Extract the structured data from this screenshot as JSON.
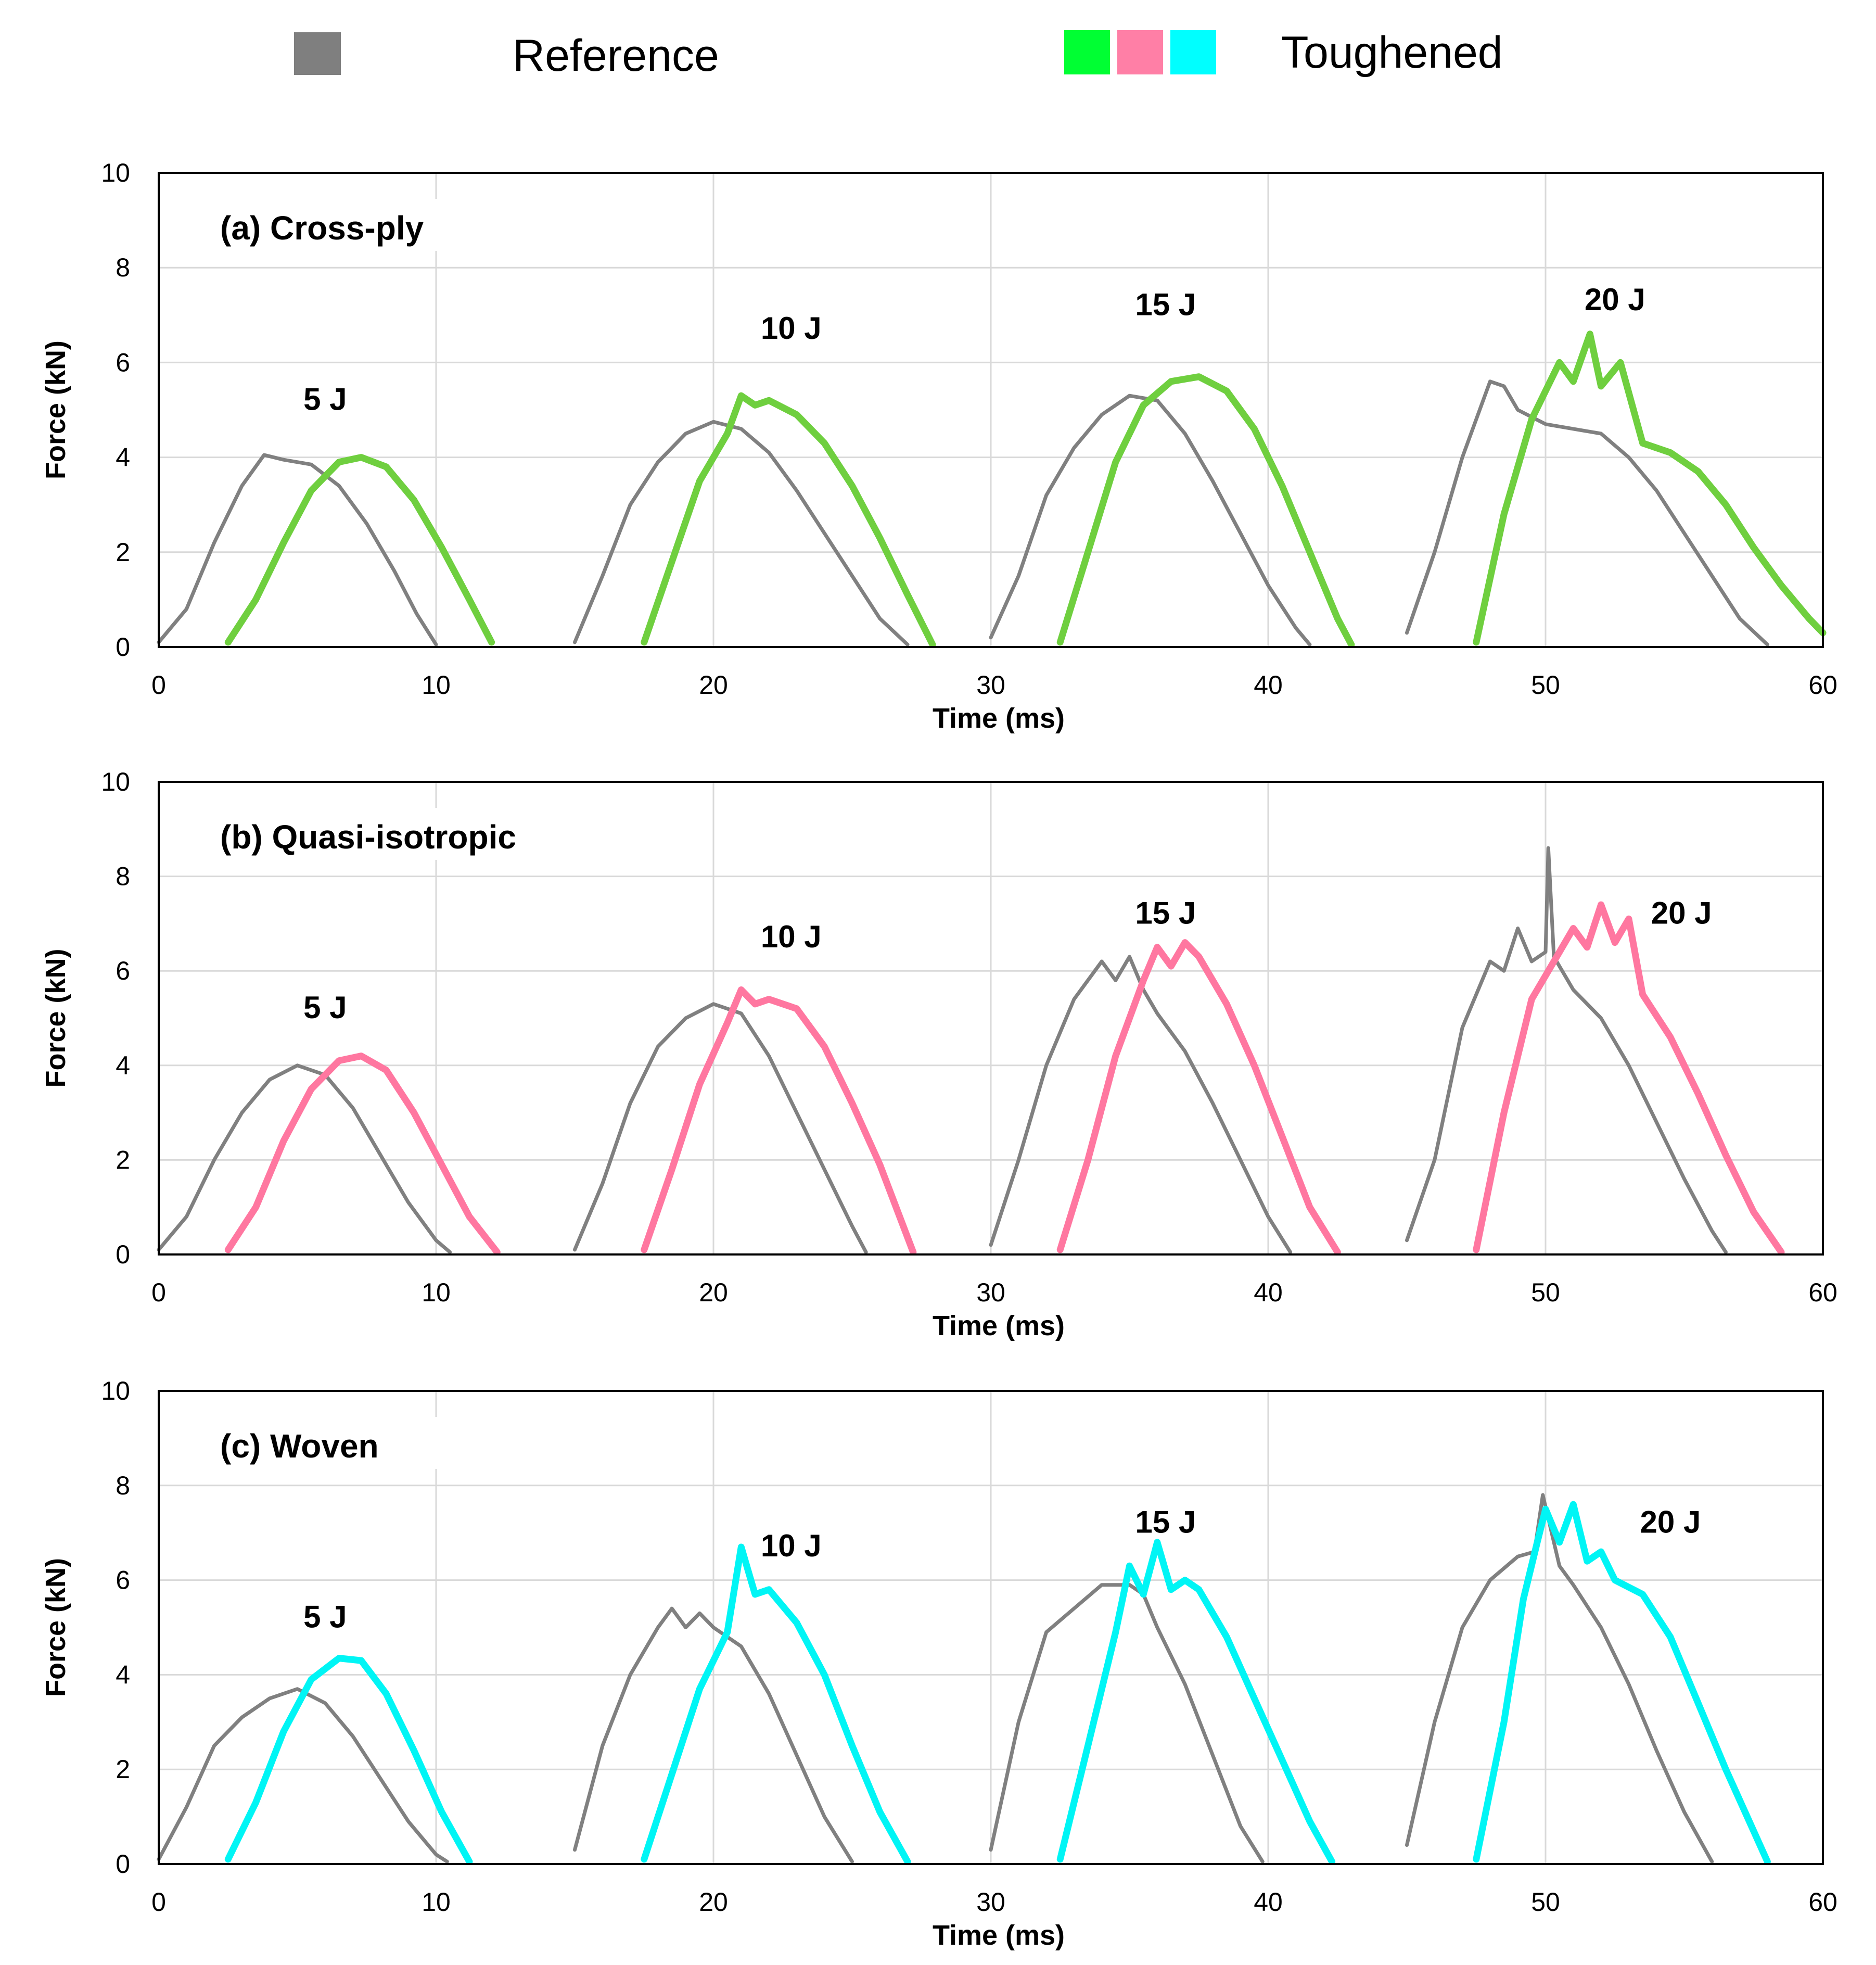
{
  "legend": {
    "reference_label": "Reference",
    "toughened_label": "Toughened",
    "reference_color": "#7f7f7f",
    "toughened_colors": [
      "#00ff33",
      "#ff7fa6",
      "#00ffff"
    ]
  },
  "chart_data": [
    {
      "type": "line",
      "title": "(a) Cross-ply",
      "xlabel": "Time (ms)",
      "ylabel": "Force (kN)",
      "xlim": [
        0,
        60
      ],
      "ylim": [
        0,
        10
      ],
      "xticks": [
        "0",
        "10",
        "20",
        "30",
        "40",
        "50",
        "60"
      ],
      "yticks": [
        "0",
        "2",
        "4",
        "6",
        "8",
        "10"
      ],
      "grid": true,
      "toughened_color": "#6fcf3f",
      "reference_color": "#808080",
      "annotations": [
        {
          "text": "5 J",
          "x": 6,
          "y": 5.0
        },
        {
          "text": "10 J",
          "x": 22.8,
          "y": 6.5
        },
        {
          "text": "15 J",
          "x": 36.3,
          "y": 7.0
        },
        {
          "text": "20 J",
          "x": 52.5,
          "y": 7.1
        }
      ],
      "series": [
        {
          "name": "Reference 5 J",
          "group": "reference",
          "x": [
            0,
            1,
            2,
            3,
            3.8,
            4.5,
            5.5,
            6.5,
            7.5,
            8.5,
            9.3,
            10
          ],
          "y": [
            0.1,
            0.8,
            2.2,
            3.4,
            4.05,
            3.95,
            3.85,
            3.4,
            2.6,
            1.6,
            0.7,
            0.05
          ]
        },
        {
          "name": "Toughened 5 J",
          "group": "toughened",
          "x": [
            2.5,
            3.5,
            4.5,
            5.5,
            6.5,
            7.3,
            8.2,
            9.2,
            10.2,
            11.2,
            12
          ],
          "y": [
            0.1,
            1.0,
            2.2,
            3.3,
            3.9,
            4.0,
            3.8,
            3.1,
            2.1,
            1.0,
            0.1
          ]
        },
        {
          "name": "Reference 10 J",
          "group": "reference",
          "x": [
            15,
            16,
            17,
            18,
            19,
            20,
            21,
            22,
            23,
            24,
            25,
            26,
            27
          ],
          "y": [
            0.1,
            1.5,
            3.0,
            3.9,
            4.5,
            4.75,
            4.6,
            4.1,
            3.3,
            2.4,
            1.5,
            0.6,
            0.05
          ]
        },
        {
          "name": "Toughened 10 J",
          "group": "toughened",
          "x": [
            17.5,
            18.5,
            19.5,
            20.5,
            21,
            21.5,
            22,
            23,
            24,
            25,
            26,
            27,
            27.9
          ],
          "y": [
            0.1,
            1.8,
            3.5,
            4.5,
            5.3,
            5.1,
            5.2,
            4.9,
            4.3,
            3.4,
            2.3,
            1.1,
            0.05
          ]
        },
        {
          "name": "Reference 15 J",
          "group": "reference",
          "x": [
            30,
            31,
            32,
            33,
            34,
            35,
            36,
            37,
            38,
            39,
            40,
            41,
            41.5
          ],
          "y": [
            0.2,
            1.5,
            3.2,
            4.2,
            4.9,
            5.3,
            5.2,
            4.5,
            3.5,
            2.4,
            1.3,
            0.4,
            0.05
          ]
        },
        {
          "name": "Toughened 15 J",
          "group": "toughened",
          "x": [
            32.5,
            33.5,
            34.5,
            35.5,
            36.5,
            37.5,
            38.5,
            39.5,
            40.5,
            41.5,
            42.5,
            43
          ],
          "y": [
            0.1,
            2.0,
            3.9,
            5.1,
            5.6,
            5.7,
            5.4,
            4.6,
            3.4,
            2.0,
            0.6,
            0.05
          ]
        },
        {
          "name": "Reference 20 J",
          "group": "reference",
          "x": [
            45,
            46,
            47,
            48,
            48.5,
            49,
            50,
            51,
            52,
            53,
            54,
            55,
            56,
            57,
            58
          ],
          "y": [
            0.3,
            2.0,
            4.0,
            5.6,
            5.5,
            5.0,
            4.7,
            4.6,
            4.5,
            4.0,
            3.3,
            2.4,
            1.5,
            0.6,
            0.05
          ]
        },
        {
          "name": "Toughened 20 J",
          "group": "toughened",
          "x": [
            47.5,
            48.5,
            49.5,
            50.5,
            51,
            51.6,
            52,
            52.7,
            53.5,
            54.5,
            55.5,
            56.5,
            57.5,
            58.5,
            59.5,
            60
          ],
          "y": [
            0.1,
            2.8,
            4.8,
            6.0,
            5.6,
            6.6,
            5.5,
            6.0,
            4.3,
            4.1,
            3.7,
            3.0,
            2.1,
            1.3,
            0.6,
            0.3
          ]
        }
      ]
    },
    {
      "type": "line",
      "title": "(b) Quasi-isotropic",
      "xlabel": "Time (ms)",
      "ylabel": "Force (kN)",
      "xlim": [
        0,
        60
      ],
      "ylim": [
        0,
        10
      ],
      "xticks": [
        "0",
        "10",
        "20",
        "30",
        "40",
        "50",
        "60"
      ],
      "yticks": [
        "0",
        "2",
        "4",
        "6",
        "8",
        "10"
      ],
      "grid": true,
      "toughened_color": "#ff77a0",
      "reference_color": "#808080",
      "annotations": [
        {
          "text": "5 J",
          "x": 6,
          "y": 5.0
        },
        {
          "text": "10 J",
          "x": 22.8,
          "y": 6.5
        },
        {
          "text": "15 J",
          "x": 36.3,
          "y": 7.0
        },
        {
          "text": "20 J",
          "x": 54.9,
          "y": 7.0
        }
      ],
      "series": [
        {
          "name": "Reference 5 J",
          "group": "reference",
          "x": [
            0,
            1,
            2,
            3,
            4,
            5,
            6,
            7,
            8,
            9,
            10,
            10.5
          ],
          "y": [
            0.1,
            0.8,
            2.0,
            3.0,
            3.7,
            4.0,
            3.8,
            3.1,
            2.1,
            1.1,
            0.3,
            0.05
          ]
        },
        {
          "name": "Toughened 5 J",
          "group": "toughened",
          "x": [
            2.5,
            3.5,
            4.5,
            5.5,
            6.5,
            7.3,
            8.2,
            9.2,
            10.2,
            11.2,
            12.2
          ],
          "y": [
            0.1,
            1.0,
            2.4,
            3.5,
            4.1,
            4.2,
            3.9,
            3.0,
            1.9,
            0.8,
            0.05
          ]
        },
        {
          "name": "Reference 10 J",
          "group": "reference",
          "x": [
            15,
            16,
            17,
            18,
            19,
            20,
            21,
            22,
            23,
            24,
            25,
            25.5
          ],
          "y": [
            0.1,
            1.5,
            3.2,
            4.4,
            5.0,
            5.3,
            5.1,
            4.2,
            3.0,
            1.8,
            0.6,
            0.05
          ]
        },
        {
          "name": "Toughened 10 J",
          "group": "toughened",
          "x": [
            17.5,
            18.5,
            19.5,
            20.5,
            21,
            21.5,
            22,
            23,
            24,
            25,
            26,
            27.2
          ],
          "y": [
            0.1,
            1.8,
            3.6,
            4.9,
            5.6,
            5.3,
            5.4,
            5.2,
            4.4,
            3.2,
            1.9,
            0.05
          ]
        },
        {
          "name": "Reference 15 J",
          "group": "reference",
          "x": [
            30,
            31,
            32,
            33,
            34,
            34.5,
            35,
            35.5,
            36,
            37,
            38,
            39,
            40,
            40.8
          ],
          "y": [
            0.2,
            2.0,
            4.0,
            5.4,
            6.2,
            5.8,
            6.3,
            5.6,
            5.1,
            4.3,
            3.2,
            2.0,
            0.8,
            0.05
          ]
        },
        {
          "name": "Toughened 15 J",
          "group": "toughened",
          "x": [
            32.5,
            33.5,
            34.5,
            35.5,
            36,
            36.5,
            37,
            37.5,
            38.5,
            39.5,
            40.5,
            41.5,
            42.5
          ],
          "y": [
            0.1,
            2.0,
            4.2,
            5.8,
            6.5,
            6.1,
            6.6,
            6.3,
            5.3,
            4.0,
            2.5,
            1.0,
            0.05
          ]
        },
        {
          "name": "Reference 20 J",
          "group": "reference",
          "x": [
            45,
            46,
            47,
            48,
            48.5,
            49,
            49.5,
            50,
            50.1,
            50.3,
            51,
            52,
            53,
            54,
            55,
            56,
            56.5
          ],
          "y": [
            0.3,
            2.0,
            4.8,
            6.2,
            6.0,
            6.9,
            6.2,
            6.4,
            8.6,
            6.3,
            5.6,
            5.0,
            4.0,
            2.8,
            1.6,
            0.5,
            0.05
          ]
        },
        {
          "name": "Toughened 20 J",
          "group": "toughened",
          "x": [
            47.5,
            48.5,
            49.5,
            50.5,
            51,
            51.5,
            52,
            52.5,
            53,
            53.5,
            54.5,
            55.5,
            56.5,
            57.5,
            58.5
          ],
          "y": [
            0.1,
            3.0,
            5.4,
            6.4,
            6.9,
            6.5,
            7.4,
            6.6,
            7.1,
            5.5,
            4.6,
            3.4,
            2.1,
            0.9,
            0.05
          ]
        }
      ]
    },
    {
      "type": "line",
      "title": "(c) Woven",
      "xlabel": "Time (ms)",
      "ylabel": "Force (kN)",
      "xlim": [
        0,
        60
      ],
      "ylim": [
        0,
        10
      ],
      "xticks": [
        "0",
        "10",
        "20",
        "30",
        "40",
        "50",
        "60"
      ],
      "yticks": [
        "0",
        "2",
        "4",
        "6",
        "8",
        "10"
      ],
      "grid": true,
      "toughened_color": "#00f5f5",
      "reference_color": "#808080",
      "annotations": [
        {
          "text": "5 J",
          "x": 6,
          "y": 5.0
        },
        {
          "text": "10 J",
          "x": 22.8,
          "y": 6.5
        },
        {
          "text": "15 J",
          "x": 36.3,
          "y": 7.0
        },
        {
          "text": "20 J",
          "x": 54.5,
          "y": 7.0
        }
      ],
      "series": [
        {
          "name": "Reference 5 J",
          "group": "reference",
          "x": [
            0,
            1,
            2,
            3,
            4,
            5,
            6,
            7,
            8,
            9,
            10,
            10.4
          ],
          "y": [
            0.1,
            1.2,
            2.5,
            3.1,
            3.5,
            3.7,
            3.4,
            2.7,
            1.8,
            0.9,
            0.2,
            0.05
          ]
        },
        {
          "name": "Toughened 5 J",
          "group": "toughened",
          "x": [
            2.5,
            3.5,
            4.5,
            5.5,
            6.5,
            7.3,
            8.2,
            9.2,
            10.2,
            11.2
          ],
          "y": [
            0.1,
            1.3,
            2.8,
            3.9,
            4.35,
            4.3,
            3.6,
            2.4,
            1.1,
            0.05
          ]
        },
        {
          "name": "Reference 10 J",
          "group": "reference",
          "x": [
            15,
            16,
            17,
            18,
            18.5,
            19,
            19.5,
            20,
            21,
            22,
            23,
            24,
            25
          ],
          "y": [
            0.3,
            2.5,
            4.0,
            5.0,
            5.4,
            5.0,
            5.3,
            5.0,
            4.6,
            3.6,
            2.3,
            1.0,
            0.05
          ]
        },
        {
          "name": "Toughened 10 J",
          "group": "toughened",
          "x": [
            17.5,
            18.5,
            19.5,
            20.5,
            21,
            21.5,
            22,
            23,
            24,
            25,
            26,
            27
          ],
          "y": [
            0.1,
            1.9,
            3.7,
            4.9,
            6.7,
            5.7,
            5.8,
            5.1,
            4.0,
            2.5,
            1.1,
            0.05
          ]
        },
        {
          "name": "Reference 15 J",
          "group": "reference",
          "x": [
            30,
            31,
            32,
            33,
            34,
            35,
            35.5,
            36,
            37,
            38,
            39,
            39.8
          ],
          "y": [
            0.3,
            3.0,
            4.9,
            5.4,
            5.9,
            5.9,
            5.7,
            5.0,
            3.8,
            2.3,
            0.8,
            0.05
          ]
        },
        {
          "name": "Toughened 15 J",
          "group": "toughened",
          "x": [
            32.5,
            33.5,
            34.5,
            35,
            35.5,
            36,
            36.5,
            37,
            37.5,
            38.5,
            39.5,
            40.5,
            41.5,
            42.3
          ],
          "y": [
            0.1,
            2.5,
            4.9,
            6.3,
            5.7,
            6.8,
            5.8,
            6.0,
            5.8,
            4.8,
            3.5,
            2.2,
            0.9,
            0.05
          ]
        },
        {
          "name": "Reference 20 J",
          "group": "reference",
          "x": [
            45,
            46,
            47,
            48,
            49,
            49.6,
            49.9,
            50.5,
            51,
            52,
            53,
            54,
            55,
            56
          ],
          "y": [
            0.4,
            3.0,
            5.0,
            6.0,
            6.5,
            6.6,
            7.8,
            6.3,
            5.9,
            5.0,
            3.8,
            2.4,
            1.1,
            0.05
          ]
        },
        {
          "name": "Toughened 20 J",
          "group": "toughened",
          "x": [
            47.5,
            48.5,
            49.2,
            49.7,
            50,
            50.5,
            51,
            51.5,
            52,
            52.5,
            53.5,
            54.5,
            55.5,
            56.5,
            57.5,
            58
          ],
          "y": [
            0.1,
            3.0,
            5.6,
            6.8,
            7.5,
            6.8,
            7.6,
            6.4,
            6.6,
            6.0,
            5.7,
            4.8,
            3.4,
            2.0,
            0.7,
            0.05
          ]
        }
      ]
    }
  ]
}
